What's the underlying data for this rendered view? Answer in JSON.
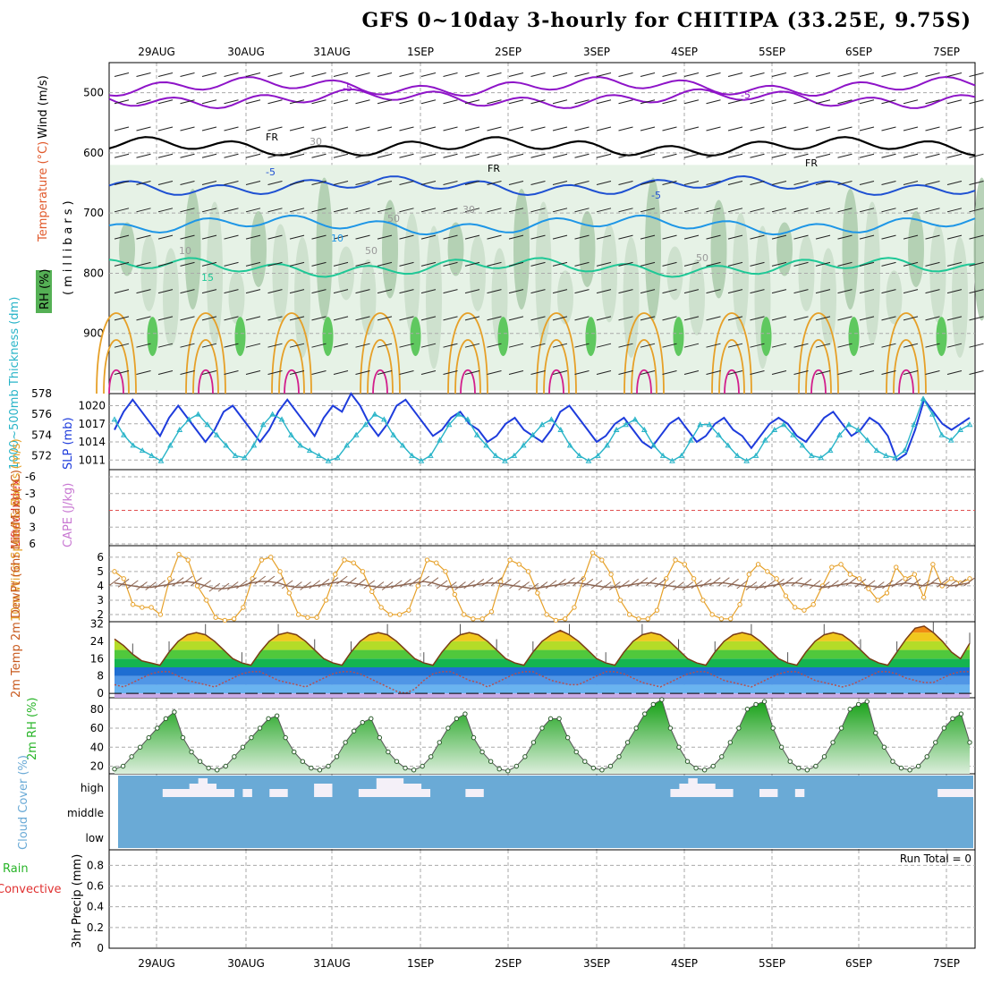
{
  "title": "GFS 0~10day 3-hourly for CHITIPA (33.25E, 9.75S)",
  "dates": [
    "29AUG",
    "30AUG",
    "31AUG",
    "1SEP",
    "2SEP",
    "3SEP",
    "4SEP",
    "5SEP",
    "6SEP",
    "7SEP"
  ],
  "run_total": "Run Total = 0",
  "chart_data": [
    {
      "type": "area",
      "panel": "upper-air",
      "ylabels": {
        "wind": "Wind (m/s)",
        "temperature": "Temperature (°C)",
        "rh": "RH (%)",
        "pressure": "(millibars)"
      },
      "yticks": [
        "500",
        "600",
        "700",
        "800",
        "900"
      ],
      "ylim": [
        1000,
        450
      ],
      "contour_labels": [
        "-5",
        "-5",
        "FR",
        "FR",
        "FR",
        "-5",
        "-5",
        "10",
        "15",
        "30",
        "30",
        "50",
        "50",
        "50",
        "10"
      ],
      "isotherms": [
        {
          "name": "-5",
          "color": "#8e14c8",
          "level": 510
        },
        {
          "name": "-5b",
          "color": "#8e14c8",
          "level": 490
        },
        {
          "name": "FR",
          "color": "#000000",
          "level": 590
        },
        {
          "name": "5",
          "color": "#1e50d2",
          "level": 655
        },
        {
          "name": "10",
          "color": "#1e96e6",
          "level": 720
        },
        {
          "name": "15",
          "color": "#1ec896",
          "level": 790
        }
      ]
    },
    {
      "type": "line",
      "panel": "thickness-slp",
      "ylabels": {
        "left": "1000~500mb Thickness (dm)",
        "right": "SLP (mb)"
      },
      "left_ticks": [
        "578",
        "576",
        "574",
        "572"
      ],
      "right_ticks": [
        "1020",
        "1017",
        "1014",
        "1011"
      ],
      "series": [
        {
          "name": "SLP",
          "color": "#1e3cdc",
          "values": [
            1016,
            1019,
            1021,
            1019,
            1017,
            1015,
            1018,
            1020,
            1018,
            1016,
            1014,
            1016,
            1019,
            1020,
            1018,
            1016,
            1014,
            1016,
            1019,
            1021,
            1019,
            1017,
            1015,
            1018,
            1020,
            1019,
            1022,
            1020,
            1017,
            1015,
            1017,
            1020,
            1021,
            1019,
            1017,
            1015,
            1016,
            1018,
            1019,
            1017,
            1016,
            1014,
            1015,
            1017,
            1018,
            1016,
            1015,
            1014,
            1016,
            1019,
            1020,
            1018,
            1016,
            1014,
            1015,
            1017,
            1018,
            1016,
            1014,
            1013,
            1015,
            1017,
            1018,
            1016,
            1014,
            1015,
            1017,
            1018,
            1016,
            1015,
            1013,
            1015,
            1017,
            1018,
            1017,
            1015,
            1014,
            1016,
            1018,
            1019,
            1017,
            1015,
            1016,
            1018,
            1017,
            1015,
            1011,
            1012,
            1016,
            1021,
            1019,
            1017,
            1016,
            1017,
            1018
          ]
        },
        {
          "name": "Thickness",
          "color": "#28b4c8",
          "values": [
            575.5,
            574,
            573,
            572.5,
            572,
            571.5,
            573,
            574.5,
            575.5,
            576,
            575,
            574,
            573,
            572,
            571.8,
            573,
            575,
            576,
            575.5,
            574,
            573,
            572.5,
            572,
            571.5,
            571.8,
            573,
            574,
            575,
            576,
            575.5,
            574,
            573,
            572,
            571.5,
            572,
            573.5,
            575,
            576,
            575.5,
            574,
            573,
            572,
            571.5,
            572,
            573,
            574,
            575,
            575.5,
            574.5,
            573,
            572,
            571.5,
            572,
            573,
            574.5,
            575,
            575.5,
            574.5,
            573,
            572,
            571.5,
            572,
            573.5,
            575,
            575,
            574,
            573,
            572,
            571.5,
            572,
            573.5,
            574.5,
            575,
            574,
            573,
            572,
            571.8,
            572.5,
            574,
            575,
            574.5,
            573.5,
            572.5,
            572,
            571.8,
            572.5,
            575,
            577.5,
            576,
            574,
            573.5,
            574.5,
            575
          ]
        }
      ]
    },
    {
      "type": "line",
      "panel": "cape-li",
      "ylabels": {
        "left": "Lifted Index",
        "right": "CAPE (J/kg)"
      },
      "yticks": [
        "-6",
        "-3",
        "0",
        "3",
        "6"
      ],
      "ylim": [
        -6,
        6
      ]
    },
    {
      "type": "line",
      "panel": "wind10m",
      "ylabels": {
        "main": "10m Wind Speed & Barbs (m/s)"
      },
      "yticks": [
        "6",
        "5",
        "4",
        "3",
        "2"
      ],
      "ylim": [
        1.5,
        6.8
      ],
      "series": [
        {
          "name": "Speed",
          "color": "#e6a028",
          "values": [
            5,
            4.5,
            2.7,
            2.5,
            2.5,
            2,
            4.5,
            6.2,
            5.8,
            4,
            3,
            1.8,
            1.6,
            1.7,
            2.5,
            4.5,
            5.8,
            6,
            5,
            3.5,
            2,
            1.8,
            1.8,
            3,
            4.8,
            5.8,
            5.6,
            5,
            3.6,
            2.5,
            2,
            2,
            2.3,
            4,
            5.8,
            5.6,
            5,
            3.4,
            2,
            1.7,
            1.7,
            2.2,
            4.3,
            5.8,
            5.5,
            5,
            3.5,
            2,
            1.6,
            1.7,
            2.5,
            4.5,
            6.3,
            5.8,
            4.8,
            3,
            2,
            1.7,
            1.7,
            2.3,
            4.5,
            5.8,
            5.5,
            4.5,
            3,
            2,
            1.7,
            1.7,
            2.7,
            4.8,
            5.5,
            5,
            4.5,
            3.3,
            2.5,
            2.3,
            2.7,
            4,
            5.3,
            5.5,
            4.8,
            4.5,
            3.8,
            3,
            3.5,
            5.3,
            4.5,
            4.8,
            3.2,
            5.5,
            4,
            4.5,
            4.2,
            4.5
          ]
        },
        {
          "name": "Barbs",
          "color": "#8c6450",
          "values": [
            4.2,
            4.1,
            4,
            3.9,
            3.9,
            4,
            4.1,
            4.2,
            4.3,
            4.2,
            4,
            3.8,
            3.8,
            3.9,
            4,
            4.2,
            4.3,
            4.3,
            4.2,
            4,
            3.9,
            3.9,
            4,
            4.1,
            4.2,
            4.3,
            4.2,
            4.1,
            4,
            3.9,
            3.9,
            4,
            4.1,
            4.2,
            4.3,
            4.2,
            4,
            3.9,
            3.9,
            4,
            4.1,
            4.2,
            4.2,
            4.1,
            4,
            3.9,
            3.8,
            3.9,
            4,
            4.1,
            4.2,
            4.2,
            4.1,
            4,
            3.9,
            3.9,
            4,
            4.1,
            4.2,
            4.2,
            4.1,
            4,
            3.9,
            3.9,
            4,
            4.1,
            4.2,
            4.2,
            4.1,
            4,
            3.9,
            3.9,
            4,
            4.1,
            4.2,
            4.2,
            4.1,
            4,
            3.9,
            4,
            4.1,
            4.2,
            4.1,
            4,
            3.9,
            4,
            4.1,
            4.2,
            4.1,
            4,
            4.2,
            4.1,
            4,
            4.1,
            4.2
          ]
        }
      ]
    },
    {
      "type": "area",
      "panel": "temp2m",
      "ylabels": {
        "main": "2m Temp 2m DewPt (6hr Min/Max) (°C)"
      },
      "yticks": [
        "32",
        "24",
        "16",
        "8",
        "0"
      ],
      "ylim": [
        -2,
        33
      ],
      "series": [
        {
          "name": "Temp",
          "color": "#7a3c14",
          "values": [
            25,
            22,
            18,
            15,
            14,
            13,
            19,
            24,
            27,
            28,
            27,
            24,
            20,
            16,
            14,
            13,
            19,
            24,
            27,
            28,
            27,
            24,
            20,
            16,
            14,
            13,
            19,
            24,
            27,
            28,
            27,
            24,
            20,
            16,
            14,
            13,
            19,
            24,
            27,
            28,
            27,
            24,
            20,
            16,
            14,
            13,
            19,
            24,
            27,
            29,
            27,
            24,
            20,
            16,
            14,
            13,
            19,
            24,
            27,
            28,
            27,
            24,
            20,
            16,
            14,
            13,
            19,
            24,
            27,
            28,
            27,
            24,
            20,
            16,
            14,
            13,
            19,
            24,
            27,
            28,
            27,
            24,
            20,
            16,
            14,
            13,
            19,
            25,
            30,
            31,
            28,
            24,
            19,
            16,
            23
          ]
        },
        {
          "name": "DewPt",
          "color": "#b45050",
          "values": [
            4,
            3,
            5,
            7,
            9,
            10,
            10,
            8,
            6,
            5,
            4,
            3,
            5,
            7,
            9,
            10,
            10,
            8,
            6,
            5,
            4,
            3,
            5,
            7,
            9,
            10,
            10,
            9,
            7,
            5,
            3,
            1,
            0,
            2,
            6,
            9,
            10,
            10,
            8,
            6,
            5,
            3,
            5,
            7,
            9,
            10,
            10,
            8,
            6,
            5,
            4,
            4,
            6,
            8,
            10,
            10,
            9,
            7,
            5,
            4,
            3,
            5,
            7,
            9,
            10,
            10,
            8,
            6,
            5,
            4,
            3,
            5,
            7,
            9,
            10,
            10,
            8,
            6,
            5,
            4,
            3,
            4,
            6,
            8,
            10,
            10,
            9,
            7,
            6,
            5,
            5,
            7,
            9,
            10,
            10
          ]
        }
      ]
    },
    {
      "type": "area",
      "panel": "rh2m",
      "ylabels": {
        "main": "2m RH (%)"
      },
      "yticks": [
        "80",
        "60",
        "40",
        "20"
      ],
      "ylim": [
        12,
        92
      ],
      "series": [
        {
          "name": "RH",
          "color": "#28b428",
          "values": [
            17,
            20,
            30,
            40,
            50,
            60,
            70,
            77,
            50,
            35,
            25,
            18,
            16,
            20,
            30,
            40,
            50,
            60,
            70,
            73,
            50,
            35,
            25,
            18,
            16,
            20,
            30,
            45,
            57,
            66,
            70,
            50,
            35,
            25,
            18,
            16,
            20,
            30,
            45,
            60,
            70,
            75,
            50,
            35,
            25,
            17,
            15,
            20,
            30,
            45,
            60,
            70,
            70,
            50,
            35,
            25,
            18,
            16,
            20,
            30,
            45,
            60,
            75,
            85,
            90,
            60,
            40,
            25,
            18,
            16,
            20,
            30,
            45,
            60,
            80,
            85,
            88,
            60,
            40,
            25,
            18,
            16,
            20,
            30,
            45,
            60,
            80,
            85,
            88,
            55,
            40,
            25,
            18,
            16,
            20,
            30,
            45,
            60,
            70,
            75,
            45
          ]
        }
      ]
    },
    {
      "type": "bar",
      "panel": "cloud",
      "ylabels": {
        "main": "Cloud Cover (%)"
      },
      "levels": [
        "high",
        "middle",
        "low"
      ],
      "series": [
        {
          "name": "high",
          "values": [
            0,
            0,
            0,
            0,
            0,
            1,
            1,
            1,
            2,
            3,
            2,
            1,
            1,
            0,
            1,
            0,
            0,
            1,
            1,
            0,
            0,
            0,
            2,
            2,
            0,
            0,
            0,
            1,
            1,
            3,
            3,
            3,
            2,
            2,
            1,
            0,
            0,
            0,
            0,
            1,
            1,
            0,
            0,
            0,
            0,
            0,
            0,
            0,
            0,
            0,
            0,
            0,
            0,
            0,
            0,
            0,
            0,
            0,
            0,
            0,
            0,
            0,
            1,
            2,
            3,
            2,
            2,
            1,
            1,
            0,
            0,
            0,
            1,
            1,
            0,
            0,
            1,
            0,
            0,
            0,
            0,
            0,
            0,
            0,
            0,
            0,
            0,
            0,
            0,
            0,
            0,
            0,
            1,
            1,
            1,
            1
          ]
        }
      ]
    },
    {
      "type": "bar",
      "panel": "precip",
      "ylabels": {
        "total": "Total / Rain",
        "convective": "Convective",
        "main": "3hr Precip (mm)"
      },
      "yticks": [
        "0.8",
        "0.6",
        "0.4",
        "0.2",
        "0"
      ],
      "ylim": [
        0,
        0.95
      ],
      "series": [
        {
          "name": "Total",
          "values": []
        }
      ]
    }
  ]
}
